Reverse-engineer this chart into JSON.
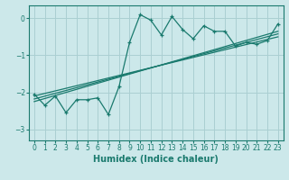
{
  "title": "",
  "xlabel": "Humidex (Indice chaleur)",
  "ylabel": "",
  "bg_color": "#cce8ea",
  "grid_color": "#aacfd2",
  "line_color": "#1a7a6e",
  "xlim": [
    -0.5,
    23.5
  ],
  "ylim": [
    -3.3,
    0.35
  ],
  "yticks": [
    0,
    -1,
    -2,
    -3
  ],
  "xticks": [
    0,
    1,
    2,
    3,
    4,
    5,
    6,
    7,
    8,
    9,
    10,
    11,
    12,
    13,
    14,
    15,
    16,
    17,
    18,
    19,
    20,
    21,
    22,
    23
  ],
  "data_x": [
    0,
    1,
    2,
    3,
    4,
    5,
    6,
    7,
    8,
    9,
    10,
    11,
    12,
    13,
    14,
    15,
    16,
    17,
    18,
    19,
    20,
    21,
    22,
    23
  ],
  "data_y": [
    -2.05,
    -2.35,
    -2.1,
    -2.55,
    -2.2,
    -2.2,
    -2.15,
    -2.6,
    -1.85,
    -0.65,
    0.1,
    -0.05,
    -0.45,
    0.05,
    -0.3,
    -0.55,
    -0.2,
    -0.35,
    -0.35,
    -0.75,
    -0.65,
    -0.7,
    -0.6,
    -0.15
  ],
  "reg_lines": [
    {
      "x": [
        0,
        23
      ],
      "y": [
        -2.18,
        -0.42
      ]
    },
    {
      "x": [
        0,
        23
      ],
      "y": [
        -2.1,
        -0.5
      ]
    },
    {
      "x": [
        0,
        23
      ],
      "y": [
        -2.25,
        -0.35
      ]
    }
  ],
  "tick_fontsize": 5.5,
  "xlabel_fontsize": 7,
  "xlabel_fontweight": "bold"
}
